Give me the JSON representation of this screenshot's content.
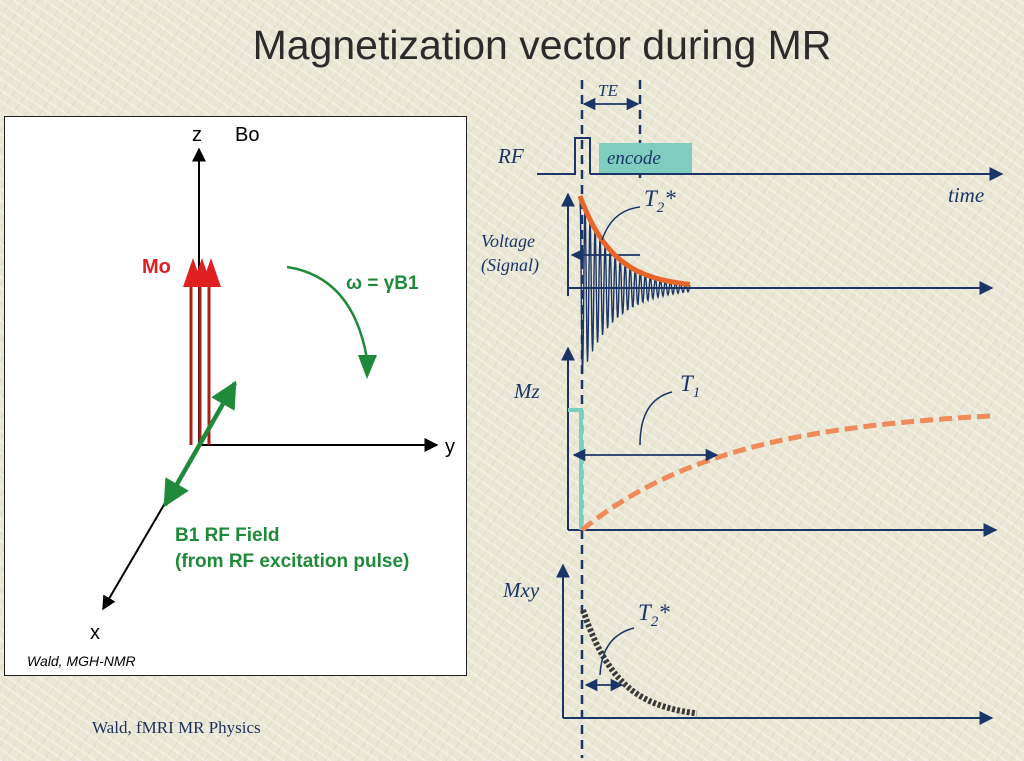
{
  "slide": {
    "title": "Magnetization vector during MR",
    "footer": "Wald, fMRI MR Physics"
  },
  "left_panel": {
    "axis_z": "z",
    "axis_y": "y",
    "axis_x": "x",
    "field_label": "Bo",
    "magnetization_label": "Mo",
    "rotation_label": "ω = γB1",
    "b1_label_line1": "B1 RF Field",
    "b1_label_line2": "(from RF excitation pulse)",
    "credit": "Wald, MGH-NMR"
  },
  "timing_diagram": {
    "te_label": "TE",
    "rf_label": "RF",
    "encode_label": "encode",
    "time_label": "time",
    "t2star_label": "T",
    "t2star_sub": "2",
    "t2star_suffix": "*",
    "voltage_line1": "Voltage",
    "voltage_line2": "(Signal)",
    "mz_label": "Mz",
    "t1_label": "T",
    "t1_sub": "1",
    "mxy_label": "Mxy",
    "t2star2_label": "T",
    "t2star2_sub": "2",
    "t2star2_suffix": "*"
  },
  "colors": {
    "navy": "#1b3566",
    "orange": "#e8652a",
    "orange_light": "#ef8a5a",
    "teal": "#7fcdbf",
    "dark_red": "#a8201a",
    "red": "#e02020",
    "green": "#1f8a3a",
    "dark_gray": "#3a3a3a"
  }
}
